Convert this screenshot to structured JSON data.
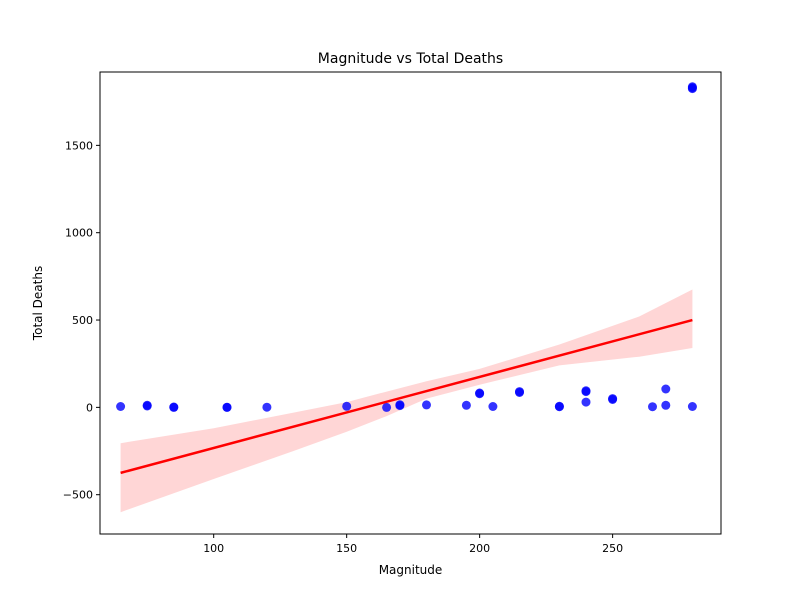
{
  "chart_data": {
    "type": "scatter",
    "title": "Magnitude vs Total Deaths",
    "xlabel": "Magnitude",
    "ylabel": "Total Deaths",
    "xlim": [
      57.25,
      290.75
    ],
    "ylim": [
      -725,
      1920
    ],
    "xticks": [
      100,
      150,
      200,
      250
    ],
    "yticks": [
      -500,
      0,
      500,
      1000,
      1500
    ],
    "grid": false,
    "legend": "none",
    "colors": {
      "points": "#0000ff",
      "regression_line": "#ff0000",
      "confidence_band": "#ffcccc"
    },
    "points": [
      {
        "x": 65,
        "y": 5
      },
      {
        "x": 75,
        "y": 8
      },
      {
        "x": 75,
        "y": 12
      },
      {
        "x": 85,
        "y": 2
      },
      {
        "x": 85,
        "y": 0
      },
      {
        "x": 105,
        "y": 0
      },
      {
        "x": 105,
        "y": 1
      },
      {
        "x": 120,
        "y": 1
      },
      {
        "x": 150,
        "y": 6
      },
      {
        "x": 165,
        "y": 0
      },
      {
        "x": 170,
        "y": 10
      },
      {
        "x": 170,
        "y": 15
      },
      {
        "x": 180,
        "y": 14
      },
      {
        "x": 195,
        "y": 12
      },
      {
        "x": 200,
        "y": 78
      },
      {
        "x": 200,
        "y": 82
      },
      {
        "x": 205,
        "y": 5
      },
      {
        "x": 215,
        "y": 85
      },
      {
        "x": 215,
        "y": 90
      },
      {
        "x": 230,
        "y": 4
      },
      {
        "x": 230,
        "y": 6
      },
      {
        "x": 240,
        "y": 30
      },
      {
        "x": 240,
        "y": 90
      },
      {
        "x": 240,
        "y": 95
      },
      {
        "x": 250,
        "y": 45
      },
      {
        "x": 250,
        "y": 50
      },
      {
        "x": 265,
        "y": 4
      },
      {
        "x": 270,
        "y": 12
      },
      {
        "x": 270,
        "y": 105
      },
      {
        "x": 280,
        "y": 5
      },
      {
        "x": 280,
        "y": 1825
      },
      {
        "x": 280,
        "y": 1830
      },
      {
        "x": 280,
        "y": 1835
      }
    ],
    "regression": {
      "x": [
        65,
        280
      ],
      "y": [
        -375,
        500
      ]
    },
    "confidence_band": {
      "x": [
        65,
        100,
        130,
        150,
        165,
        180,
        200,
        230,
        260,
        280
      ],
      "upper": [
        -205,
        -120,
        -30,
        30,
        90,
        150,
        220,
        360,
        520,
        675
      ],
      "lower": [
        -600,
        -410,
        -250,
        -140,
        -50,
        50,
        130,
        240,
        290,
        340
      ]
    }
  }
}
